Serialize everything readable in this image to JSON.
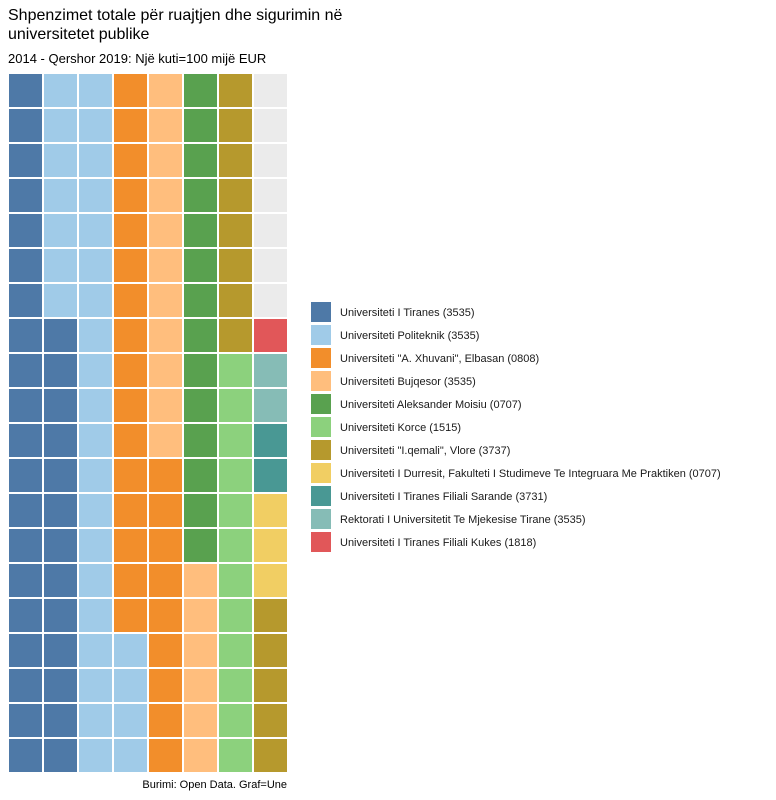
{
  "chart_data": {
    "type": "waffle",
    "title": "Shpenzimet totale për ruajtjen dhe sigurimin në universitetet publike",
    "subtitle": "2014 - Qershor 2019: Një kuti=100 mijë EUR",
    "caption": "Burimi: Open Data. Graf=Une",
    "series": [
      {
        "name": "Universiteti I Tiranes (3535)",
        "color": "#4e79a7",
        "values": [
          33
        ]
      },
      {
        "name": "Universiteti Politeknik (3535)",
        "color": "#a0cbe8",
        "values": [
          31
        ]
      },
      {
        "name": "Universiteti \"A. Xhuvani\", Elbasan (0808)",
        "color": "#f28e2b",
        "values": [
          25
        ]
      },
      {
        "name": "Universiteti Bujqesor (3535)",
        "color": "#ffbe7d",
        "values": [
          17
        ]
      },
      {
        "name": "Universiteti Aleksander Moisiu (0707)",
        "color": "#59a14f",
        "values": [
          14
        ]
      },
      {
        "name": "Universiteti Korce (1515)",
        "color": "#8cd17d",
        "values": [
          12
        ]
      },
      {
        "name": "Universiteti \"I.qemali\", Vlore (3737)",
        "color": "#b6992d",
        "values": [
          13
        ]
      },
      {
        "name": "Universiteti I Durresit, Fakulteti I Studimeve Te Integruara Me Praktiken (0707)",
        "color": "#f1ce63",
        "values": [
          3
        ]
      },
      {
        "name": "Universiteti I Tiranes Filiali Sarande (3731)",
        "color": "#499894",
        "values": [
          2
        ]
      },
      {
        "name": "Rektorati I Universitetit Te Mjekesise Tirane (3535)",
        "color": "#86bcb6",
        "values": [
          2
        ]
      },
      {
        "name": "Universiteti I Tiranes Filiali Kukes (1818)",
        "color": "#e15759",
        "values": [
          1
        ]
      }
    ]
  }
}
